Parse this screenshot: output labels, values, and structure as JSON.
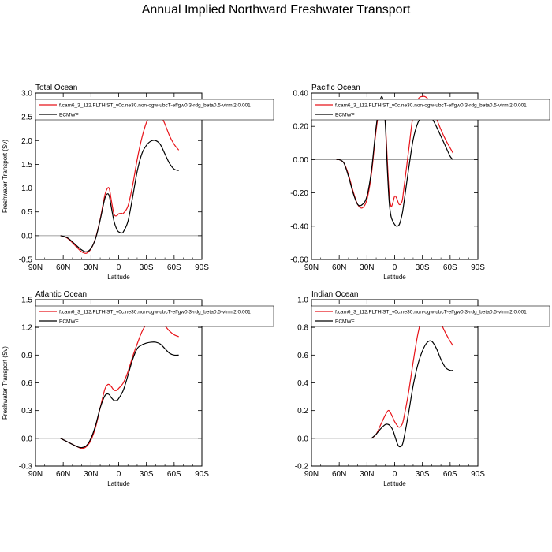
{
  "page": {
    "title": "Annual Implied Northward Freshwater Transport"
  },
  "colors": {
    "model": "#e8141a",
    "obs": "#000000",
    "zero": "#808080"
  },
  "chart_data": [
    {
      "type": "line",
      "title": "Total Ocean",
      "xlabel": "Latitude",
      "ylabel": "Freshwater Transport (Sv)",
      "xlim": [
        90,
        -90
      ],
      "ylim": [
        -0.5,
        3.0
      ],
      "xticks": [
        90,
        60,
        30,
        0,
        -30,
        -60,
        -90
      ],
      "xtick_labels": [
        "90N",
        "60N",
        "30N",
        "0",
        "30S",
        "60S",
        "90S"
      ],
      "yticks": [
        -0.5,
        0,
        0.5,
        1,
        1.5,
        2,
        2.5,
        3
      ],
      "ytick_labels": [
        "-0.5",
        "0.0",
        "0.5",
        "1.0",
        "1.5",
        "2.0",
        "2.5",
        "3.0"
      ],
      "legend": [
        "f.cam6_3_112.FLTHIST_v0c.ne30.non-ogw-ubcT-effgw0.3-rdg_beta0.5-vtrmi2.0.001",
        "ECMWF"
      ],
      "series": [
        {
          "name": "f.cam6_3_112.FLTHIST_v0c.ne30.non-ogw-ubcT-effgw0.3-rdg_beta0.5-vtrmi2.0.001",
          "x": [
            63,
            55,
            45,
            40,
            35,
            30,
            25,
            20,
            15,
            12,
            10,
            8,
            5,
            2,
            0,
            -3,
            -5,
            -10,
            -15,
            -20,
            -25,
            -30,
            -35,
            -40,
            -45,
            -50,
            -55,
            -60,
            -65
          ],
          "y": [
            0,
            -0.06,
            -0.25,
            -0.34,
            -0.37,
            -0.28,
            -0.05,
            0.35,
            0.85,
            1.0,
            0.98,
            0.75,
            0.45,
            0.42,
            0.46,
            0.47,
            0.47,
            0.62,
            1.05,
            1.6,
            2.05,
            2.38,
            2.58,
            2.62,
            2.55,
            2.35,
            2.1,
            1.92,
            1.8
          ]
        },
        {
          "name": "ECMWF",
          "x": [
            63,
            55,
            45,
            40,
            35,
            30,
            25,
            20,
            15,
            12,
            10,
            8,
            5,
            2,
            0,
            -3,
            -5,
            -10,
            -15,
            -20,
            -25,
            -30,
            -35,
            -40,
            -45,
            -50,
            -55,
            -60,
            -65
          ],
          "y": [
            0,
            -0.05,
            -0.22,
            -0.3,
            -0.34,
            -0.27,
            -0.06,
            0.33,
            0.78,
            0.88,
            0.82,
            0.6,
            0.3,
            0.13,
            0.08,
            0.06,
            0.08,
            0.3,
            0.8,
            1.35,
            1.72,
            1.9,
            1.99,
            2.0,
            1.92,
            1.72,
            1.52,
            1.4,
            1.37
          ]
        }
      ]
    },
    {
      "type": "line",
      "title": "Pacific Ocean",
      "xlabel": "Latitude",
      "ylabel": "",
      "xlim": [
        90,
        -90
      ],
      "ylim": [
        -0.6,
        0.4
      ],
      "xticks": [
        90,
        60,
        30,
        0,
        -30,
        -60,
        -90
      ],
      "xtick_labels": [
        "90N",
        "60N",
        "30N",
        "0",
        "30S",
        "60S",
        "90S"
      ],
      "yticks": [
        -0.6,
        -0.4,
        -0.2,
        0,
        0.2,
        0.4
      ],
      "ytick_labels": [
        "-0.60",
        "-0.40",
        "-0.20",
        "0.00",
        "0.20",
        "0.40"
      ],
      "legend": [
        "f.cam6_3_112.FLTHIST_v0c.ne30.non-ogw-ubcT-effgw0.3-rdg_beta0.5-vtrmi2.0.001",
        "ECMWF"
      ],
      "series": [
        {
          "name": "f.cam6_3_112.FLTHIST_v0c.ne30.non-ogw-ubcT-effgw0.3-rdg_beta0.5-vtrmi2.0.001",
          "x": [
            63,
            60,
            55,
            50,
            45,
            40,
            35,
            30,
            25,
            20,
            15,
            12,
            10,
            8,
            6,
            4,
            2,
            0,
            -2,
            -5,
            -8,
            -10,
            -15,
            -20,
            -25,
            -30,
            -35,
            -40,
            -45,
            -50,
            -55,
            -60,
            -63
          ],
          "y": [
            0,
            0,
            -0.02,
            -0.09,
            -0.19,
            -0.27,
            -0.29,
            -0.24,
            -0.08,
            0.18,
            0.35,
            0.34,
            0.22,
            0.0,
            -0.2,
            -0.28,
            -0.26,
            -0.22,
            -0.23,
            -0.27,
            -0.25,
            -0.17,
            0.05,
            0.27,
            0.36,
            0.38,
            0.37,
            0.32,
            0.25,
            0.18,
            0.12,
            0.07,
            0.04
          ]
        },
        {
          "name": "ECMWF",
          "x": [
            63,
            60,
            55,
            50,
            45,
            40,
            35,
            30,
            25,
            20,
            15,
            12,
            10,
            8,
            6,
            4,
            2,
            0,
            -2,
            -5,
            -8,
            -10,
            -15,
            -20,
            -25,
            -30,
            -35,
            -40,
            -45,
            -50,
            -55,
            -60,
            -63
          ],
          "y": [
            0,
            0,
            -0.02,
            -0.1,
            -0.2,
            -0.27,
            -0.27,
            -0.22,
            -0.06,
            0.2,
            0.37,
            0.34,
            0.2,
            -0.05,
            -0.25,
            -0.34,
            -0.37,
            -0.39,
            -0.4,
            -0.39,
            -0.33,
            -0.26,
            -0.06,
            0.12,
            0.22,
            0.26,
            0.27,
            0.25,
            0.2,
            0.14,
            0.08,
            0.02,
            0
          ]
        }
      ]
    },
    {
      "type": "line",
      "title": "Atlantic Ocean",
      "xlabel": "Latitude",
      "ylabel": "Freshwater Transport (Sv)",
      "xlim": [
        90,
        -90
      ],
      "ylim": [
        -0.3,
        1.5
      ],
      "xticks": [
        90,
        60,
        30,
        0,
        -30,
        -60,
        -90
      ],
      "xtick_labels": [
        "90N",
        "60N",
        "30N",
        "0",
        "30S",
        "60S",
        "90S"
      ],
      "yticks": [
        -0.3,
        0,
        0.3,
        0.6,
        0.9,
        1.2,
        1.5
      ],
      "ytick_labels": [
        "-0.3",
        "0.0",
        "0.3",
        "0.6",
        "0.9",
        "1.2",
        "1.5"
      ],
      "legend": [
        "f.cam6_3_112.FLTHIST_v0c.ne30.non-ogw-ubcT-effgw0.3-rdg_beta0.5-vtrmi2.0.001",
        "ECMWF"
      ],
      "series": [
        {
          "name": "f.cam6_3_112.FLTHIST_v0c.ne30.non-ogw-ubcT-effgw0.3-rdg_beta0.5-vtrmi2.0.001",
          "x": [
            63,
            55,
            45,
            40,
            35,
            30,
            25,
            20,
            15,
            12,
            10,
            8,
            5,
            2,
            0,
            -5,
            -10,
            -15,
            -20,
            -25,
            -30,
            -35,
            -40,
            -45,
            -50,
            -55,
            -60,
            -65
          ],
          "y": [
            0,
            -0.04,
            -0.09,
            -0.11,
            -0.09,
            -0.02,
            0.12,
            0.33,
            0.53,
            0.58,
            0.58,
            0.56,
            0.52,
            0.52,
            0.54,
            0.6,
            0.72,
            0.88,
            1.02,
            1.15,
            1.24,
            1.3,
            1.31,
            1.28,
            1.22,
            1.16,
            1.12,
            1.1
          ]
        },
        {
          "name": "ECMWF",
          "x": [
            63,
            55,
            45,
            40,
            35,
            30,
            25,
            20,
            15,
            12,
            10,
            8,
            5,
            2,
            0,
            -5,
            -10,
            -15,
            -20,
            -25,
            -30,
            -35,
            -40,
            -45,
            -50,
            -55,
            -60,
            -65
          ],
          "y": [
            0,
            -0.04,
            -0.09,
            -0.1,
            -0.08,
            0.0,
            0.14,
            0.33,
            0.46,
            0.48,
            0.47,
            0.44,
            0.41,
            0.41,
            0.43,
            0.52,
            0.68,
            0.85,
            0.97,
            1.01,
            1.03,
            1.04,
            1.04,
            1.02,
            0.97,
            0.92,
            0.9,
            0.9
          ]
        }
      ]
    },
    {
      "type": "line",
      "title": "Indian Ocean",
      "xlabel": "Latitude",
      "ylabel": "",
      "xlim": [
        90,
        -90
      ],
      "ylim": [
        -0.2,
        1.0
      ],
      "xticks": [
        90,
        60,
        30,
        0,
        -30,
        -60,
        -90
      ],
      "xtick_labels": [
        "90N",
        "60N",
        "30N",
        "0",
        "30S",
        "60S",
        "90S"
      ],
      "yticks": [
        -0.2,
        0,
        0.2,
        0.4,
        0.6,
        0.8,
        1.0
      ],
      "ytick_labels": [
        "-0.2",
        "0.0",
        "0.2",
        "0.4",
        "0.6",
        "0.8",
        "1.0"
      ],
      "legend": [
        "f.cam6_3_112.FLTHIST_v0c.ne30.non-ogw-ubcT-effgw0.3-rdg_beta0.5-vtrmi2.0.001",
        "ECMWF"
      ],
      "series": [
        {
          "name": "f.cam6_3_112.FLTHIST_v0c.ne30.non-ogw-ubcT-effgw0.3-rdg_beta0.5-vtrmi2.0.001",
          "x": [
            25,
            20,
            15,
            10,
            7,
            5,
            2,
            0,
            -3,
            -5,
            -8,
            -10,
            -15,
            -20,
            -25,
            -30,
            -35,
            -40,
            -45,
            -50,
            -55,
            -60,
            -63
          ],
          "y": [
            0,
            0.03,
            0.1,
            0.17,
            0.2,
            0.19,
            0.15,
            0.12,
            0.09,
            0.08,
            0.1,
            0.15,
            0.33,
            0.55,
            0.75,
            0.88,
            0.94,
            0.94,
            0.9,
            0.83,
            0.76,
            0.7,
            0.67
          ]
        },
        {
          "name": "ECMWF",
          "x": [
            25,
            20,
            15,
            10,
            7,
            5,
            2,
            0,
            -3,
            -5,
            -8,
            -10,
            -15,
            -20,
            -25,
            -30,
            -35,
            -40,
            -45,
            -50,
            -55,
            -60,
            -63
          ],
          "y": [
            0,
            0.03,
            0.07,
            0.1,
            0.1,
            0.09,
            0.06,
            0.02,
            -0.04,
            -0.06,
            -0.05,
            0.0,
            0.18,
            0.38,
            0.53,
            0.63,
            0.69,
            0.7,
            0.65,
            0.57,
            0.51,
            0.49,
            0.49
          ]
        }
      ]
    }
  ]
}
